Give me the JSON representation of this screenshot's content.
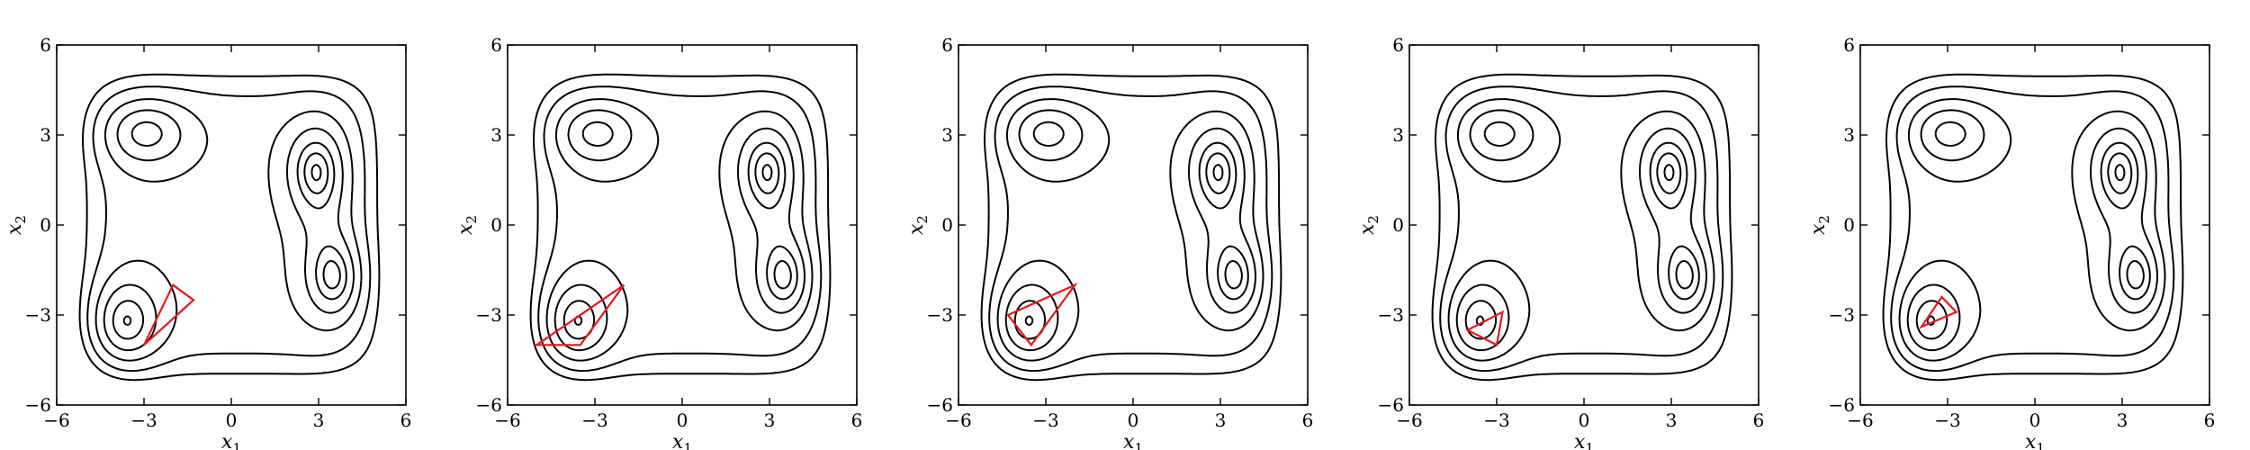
{
  "chart_data": {
    "type": "contour",
    "xlim": [
      -6,
      6
    ],
    "ylim": [
      -6,
      6
    ],
    "xticks": [
      -6,
      -3,
      0,
      3,
      6
    ],
    "yticks": [
      -6,
      -3,
      0,
      3,
      6
    ],
    "xtick_labels": [
      "−6",
      "−3",
      "0",
      "3",
      "6"
    ],
    "ytick_labels": [
      "−6",
      "−3",
      "0",
      "3",
      "6"
    ],
    "xlabel": "x",
    "xlabel_sub": "1",
    "ylabel": "x",
    "ylabel_sub": "2",
    "contour_levels": [
      0.2,
      0.6,
      1.2,
      2.2,
      3.4,
      4.8,
      6.2
    ],
    "wells": [
      {
        "x": -3.0,
        "y": 3.1,
        "depth": 3.2,
        "sx": 1.6,
        "sy": 1.2
      },
      {
        "x": 2.9,
        "y": 1.9,
        "depth": 3.0,
        "sx": 1.1,
        "sy": 1.6
      },
      {
        "x": 3.6,
        "y": -1.8,
        "depth": 3.0,
        "sx": 1.0,
        "sy": 1.4
      },
      {
        "x": -3.7,
        "y": -3.3,
        "depth": 3.8,
        "sx": 1.3,
        "sy": 1.6
      },
      {
        "x": 3.2,
        "y": 0.0,
        "depth": 1.2,
        "sx": 1.2,
        "sy": 3.0
      }
    ],
    "simplex_color": "#e31a1c",
    "contour_color": "#000000",
    "panels": [
      {
        "simplex": [
          [
            -3.0,
            -4.0
          ],
          [
            -2.0,
            -2.0
          ],
          [
            -1.3,
            -2.5
          ]
        ]
      },
      {
        "simplex": [
          [
            -5.0,
            -4.0
          ],
          [
            -2.0,
            -2.0
          ],
          [
            -3.5,
            -4.0
          ]
        ]
      },
      {
        "simplex": [
          [
            -3.5,
            -4.0
          ],
          [
            -2.0,
            -2.0
          ],
          [
            -4.3,
            -3.0
          ]
        ]
      },
      {
        "simplex": [
          [
            -3.0,
            -4.0
          ],
          [
            -2.8,
            -2.9
          ],
          [
            -4.0,
            -3.5
          ]
        ]
      },
      {
        "simplex": [
          [
            -2.7,
            -2.9
          ],
          [
            -3.9,
            -3.4
          ],
          [
            -3.2,
            -2.4
          ]
        ]
      }
    ]
  }
}
